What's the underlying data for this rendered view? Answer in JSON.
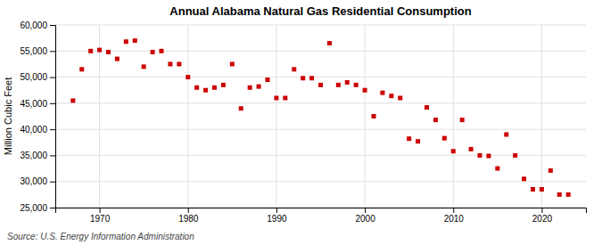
{
  "chart_data": {
    "type": "scatter",
    "title": "Annual Alabama Natural Gas Residential Consumption",
    "ylabel": "Million Cubic Feet",
    "source": "Source: U.S. Energy Information Administration",
    "color": "#cc0000",
    "marker": "square",
    "grid": true,
    "xlim": [
      1965,
      2025
    ],
    "xticks": [
      1970,
      1980,
      1990,
      2000,
      2010,
      2020
    ],
    "ylim": [
      25000,
      60000
    ],
    "yticks": [
      {
        "value": 25000,
        "label": "25,000"
      },
      {
        "value": 30000,
        "label": "30,000"
      },
      {
        "value": 35000,
        "label": "35,000"
      },
      {
        "value": 40000,
        "label": "40,000"
      },
      {
        "value": 45000,
        "label": "45,000"
      },
      {
        "value": 50000,
        "label": "50,000"
      },
      {
        "value": 55000,
        "label": "55,000"
      },
      {
        "value": 60000,
        "label": "60,000"
      }
    ],
    "x": [
      1967,
      1968,
      1969,
      1970,
      1971,
      1972,
      1973,
      1974,
      1975,
      1976,
      1977,
      1978,
      1979,
      1980,
      1981,
      1982,
      1983,
      1984,
      1985,
      1986,
      1987,
      1988,
      1989,
      1990,
      1991,
      1992,
      1993,
      1994,
      1995,
      1996,
      1997,
      1998,
      1999,
      2000,
      2001,
      2002,
      2003,
      2004,
      2005,
      2006,
      2007,
      2008,
      2009,
      2010,
      2011,
      2012,
      2013,
      2014,
      2015,
      2016,
      2017,
      2018,
      2019,
      2020,
      2021,
      2022,
      2023
    ],
    "values": [
      45500,
      51500,
      55000,
      55200,
      54800,
      53500,
      56800,
      57000,
      52000,
      54800,
      55000,
      52500,
      52500,
      50000,
      48000,
      47500,
      48000,
      48500,
      52500,
      44000,
      48000,
      48200,
      49500,
      46000,
      46000,
      51500,
      49800,
      49800,
      48500,
      56500,
      48500,
      49000,
      48500,
      47500,
      42500,
      47000,
      46400,
      46000,
      38200,
      37700,
      44200,
      41800,
      38300,
      35800,
      41800,
      36200,
      35000,
      34900,
      32500,
      39000,
      35000,
      30500,
      28500,
      28500,
      32100,
      27500,
      27500
    ]
  }
}
